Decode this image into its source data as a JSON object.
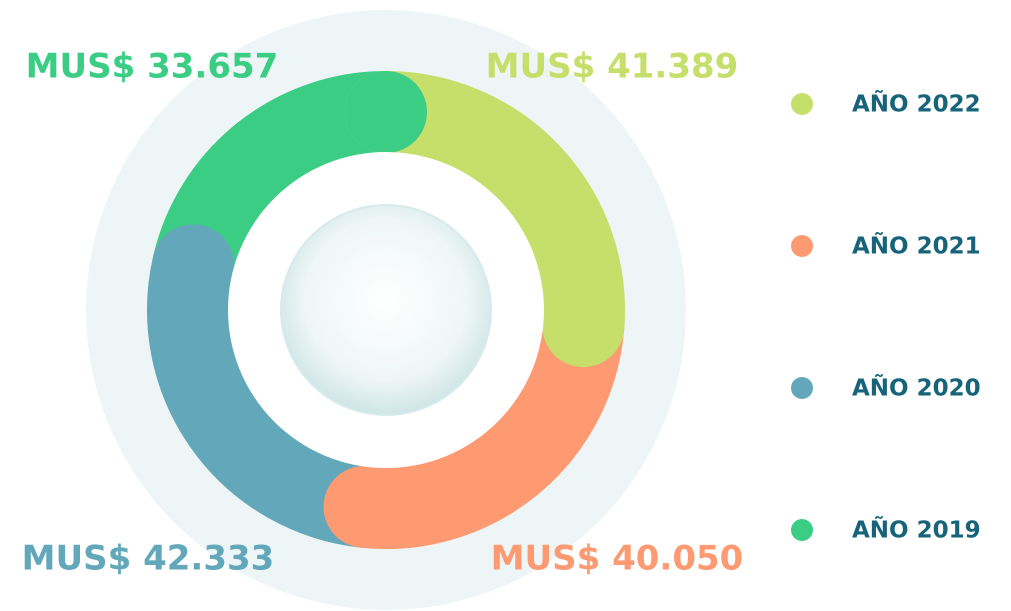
{
  "chart_data": {
    "type": "donut",
    "categories": [
      "AÑO 2022",
      "AÑO 2021",
      "AÑO 2020",
      "AÑO 2019"
    ],
    "values": [
      41389,
      40050,
      42333,
      33657
    ],
    "value_labels": [
      "MUS$ 41.389",
      "MUS$ 40.050",
      "MUS$ 42.333",
      "MUS$ 33.657"
    ],
    "colors": [
      "#c5df6a",
      "#fd9a72",
      "#62a7ba",
      "#3bcd84"
    ]
  }
}
